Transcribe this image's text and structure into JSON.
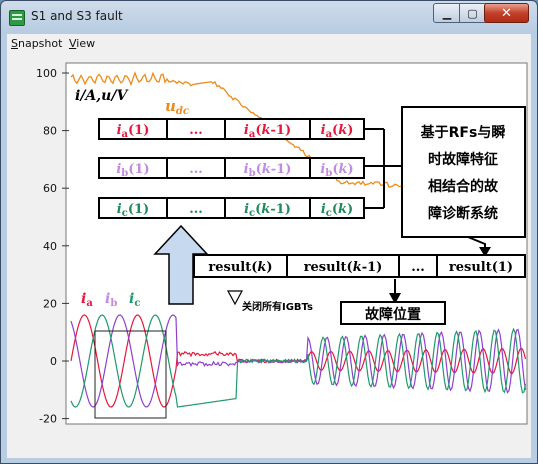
{
  "window": {
    "title": "S1 and S3 fault"
  },
  "menu": [
    {
      "label": "Snapshot",
      "key": "S"
    },
    {
      "label": "View",
      "key": "V"
    }
  ],
  "axis": {
    "y_ticks": [
      "100",
      "80",
      "60",
      "40",
      "20",
      "0",
      "-20"
    ],
    "y_label": "i/A,u/V",
    "udc_label": "u",
    "udc_sub": "dc"
  },
  "rows": {
    "a": {
      "color": "#e8173b",
      "cells": [
        "ia(1)",
        "...",
        "ia(k-1)",
        "ia(k)"
      ]
    },
    "b": {
      "color": "#c08be0",
      "cells": [
        "ib(1)",
        "...",
        "ib(k-1)",
        "ib(k)"
      ]
    },
    "c": {
      "color": "#1e8a5b",
      "cells": [
        "ic(1)",
        "...",
        "ic(k-1)",
        "ic(k)"
      ]
    }
  },
  "system_box": [
    "基于RFs与瞬",
    "时故障特征",
    "相结合的故",
    "障诊断系统"
  ],
  "result_cells": [
    "result(k)",
    "result(k-1)",
    "...",
    "result(1)"
  ],
  "annotation": "关闭所有IGBTs",
  "fault_location": "故障位置",
  "legend": {
    "a": "ia",
    "b": "ib",
    "c": "ic"
  },
  "colors": {
    "udc": "#f08a1a",
    "phase_a": "#e8173b",
    "phase_b": "#8e3fd0",
    "phase_c": "#1e9a6b",
    "arrow_fill": "#c6d9ef"
  }
}
